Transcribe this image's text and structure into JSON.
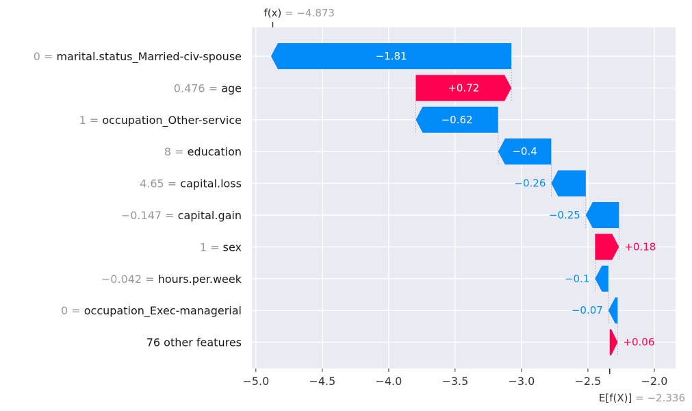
{
  "chart_data": {
    "type": "waterfall",
    "fx_label": "f(x)",
    "fx_value": "−4.873",
    "ex_label": "E[f(X)]",
    "ex_value": "−2.336",
    "base_value": -2.336,
    "final_value": -4.873,
    "xlim": [
      -5.03,
      -1.84
    ],
    "xticks": [
      -5.0,
      -4.5,
      -4.0,
      -3.5,
      -3.0,
      -2.5,
      -2.0
    ],
    "xtick_labels": [
      "−5.0",
      "−4.5",
      "−4.0",
      "−3.5",
      "−3.0",
      "−2.5",
      "−2.0"
    ],
    "positive_color": "#ff0051",
    "negative_color": "#008bfb",
    "grid": true,
    "features": [
      {
        "value": "0",
        "name": "marital.status_Married-civ-spouse",
        "contribution": -1.81,
        "label": "−1.81",
        "label_inside": true
      },
      {
        "value": "0.476",
        "name": "age",
        "contribution": 0.72,
        "label": "+0.72",
        "label_inside": true
      },
      {
        "value": "1",
        "name": "occupation_Other-service",
        "contribution": -0.62,
        "label": "−0.62",
        "label_inside": true
      },
      {
        "value": "8",
        "name": "education",
        "contribution": -0.4,
        "label": "−0.4",
        "label_inside": true
      },
      {
        "value": "4.65",
        "name": "capital.loss",
        "contribution": -0.26,
        "label": "−0.26",
        "label_inside": false
      },
      {
        "value": "−0.147",
        "name": "capital.gain",
        "contribution": -0.25,
        "label": "−0.25",
        "label_inside": false
      },
      {
        "value": "1",
        "name": "sex",
        "contribution": 0.18,
        "label": "+0.18",
        "label_inside": false
      },
      {
        "value": "−0.042",
        "name": "hours.per.week",
        "contribution": -0.1,
        "label": "−0.1",
        "label_inside": false
      },
      {
        "value": "0",
        "name": "occupation_Exec-managerial",
        "contribution": -0.07,
        "label": "−0.07",
        "label_inside": false
      },
      {
        "value": "",
        "name": "76 other features",
        "contribution": 0.06,
        "label": "+0.06",
        "label_inside": false
      }
    ]
  }
}
